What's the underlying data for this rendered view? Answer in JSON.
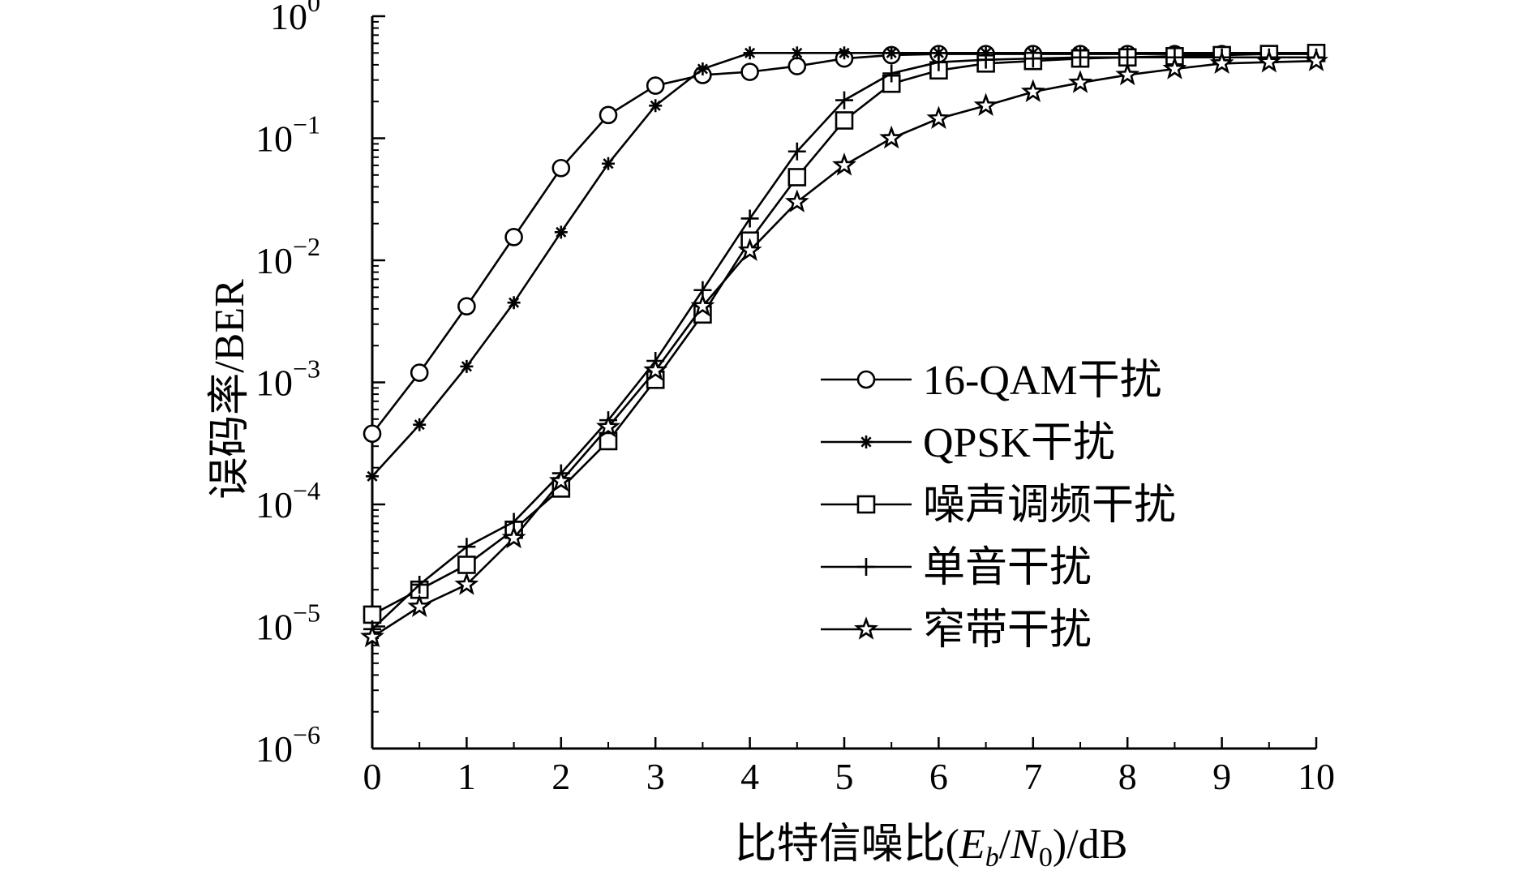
{
  "chart_data": {
    "type": "line",
    "title": "",
    "xlabel": "比特信噪比(E_b/N_0)/dB",
    "xlabel_parts": {
      "prefix": "比特信噪比(",
      "e": "E",
      "b": "b",
      "slash": "/",
      "n": "N",
      "zero": "0",
      "suffix": ")/dB"
    },
    "ylabel": "误码率/BER",
    "xlim": [
      0,
      10
    ],
    "ylim": [
      1e-06,
      1
    ],
    "yscale": "log",
    "grid": false,
    "legend_position": "center-right",
    "x_ticks": [
      "0",
      "1",
      "2",
      "3",
      "4",
      "5",
      "6",
      "7",
      "8",
      "9",
      "10"
    ],
    "y_ticks": [
      {
        "base": "10",
        "exp": "0"
      },
      {
        "base": "10",
        "exp": "−1"
      },
      {
        "base": "10",
        "exp": "−2"
      },
      {
        "base": "10",
        "exp": "−3"
      },
      {
        "base": "10",
        "exp": "−4"
      },
      {
        "base": "10",
        "exp": "−5"
      },
      {
        "base": "10",
        "exp": "−6"
      }
    ],
    "x": [
      0,
      0.5,
      1,
      1.5,
      2,
      2.5,
      3,
      3.5,
      4,
      4.5,
      5,
      5.5,
      6,
      6.5,
      7,
      7.5,
      8,
      8.5,
      9,
      9.5,
      10
    ],
    "series": [
      {
        "name": "16-QAM干扰",
        "marker": "circle",
        "values": [
          0.00038,
          0.0012,
          0.0042,
          0.0155,
          0.057,
          0.155,
          0.27,
          0.33,
          0.35,
          0.39,
          0.45,
          0.48,
          0.49,
          0.49,
          0.49,
          0.49,
          0.49,
          0.49,
          0.49,
          0.49,
          0.49
        ]
      },
      {
        "name": "QPSK干扰",
        "marker": "asterisk",
        "values": [
          0.00017,
          0.00045,
          0.00135,
          0.0045,
          0.017,
          0.062,
          0.185,
          0.37,
          0.5,
          0.5,
          0.5,
          0.5,
          0.5,
          0.5,
          0.5,
          0.5,
          0.5,
          0.5,
          0.5,
          0.5,
          0.5
        ]
      },
      {
        "name": "噪声调频干扰",
        "marker": "square",
        "values": [
          1.25e-05,
          2e-05,
          3.2e-05,
          6.2e-05,
          0.000135,
          0.00033,
          0.00105,
          0.0036,
          0.0145,
          0.048,
          0.14,
          0.28,
          0.36,
          0.41,
          0.43,
          0.45,
          0.46,
          0.47,
          0.48,
          0.49,
          0.5
        ]
      },
      {
        "name": "单音干扰",
        "marker": "plus",
        "values": [
          9.5e-06,
          2.2e-05,
          4.5e-05,
          7.2e-05,
          0.00018,
          0.00049,
          0.0015,
          0.0057,
          0.022,
          0.078,
          0.205,
          0.34,
          0.42,
          0.44,
          0.45,
          0.46,
          0.46,
          0.46,
          0.46,
          0.46,
          0.46
        ]
      },
      {
        "name": "窄带干扰",
        "marker": "star",
        "values": [
          8.2e-06,
          1.45e-05,
          2.2e-05,
          5.3e-05,
          0.000155,
          0.00043,
          0.00125,
          0.0042,
          0.012,
          0.03,
          0.06,
          0.1,
          0.145,
          0.185,
          0.24,
          0.285,
          0.33,
          0.37,
          0.41,
          0.42,
          0.43
        ]
      }
    ]
  }
}
